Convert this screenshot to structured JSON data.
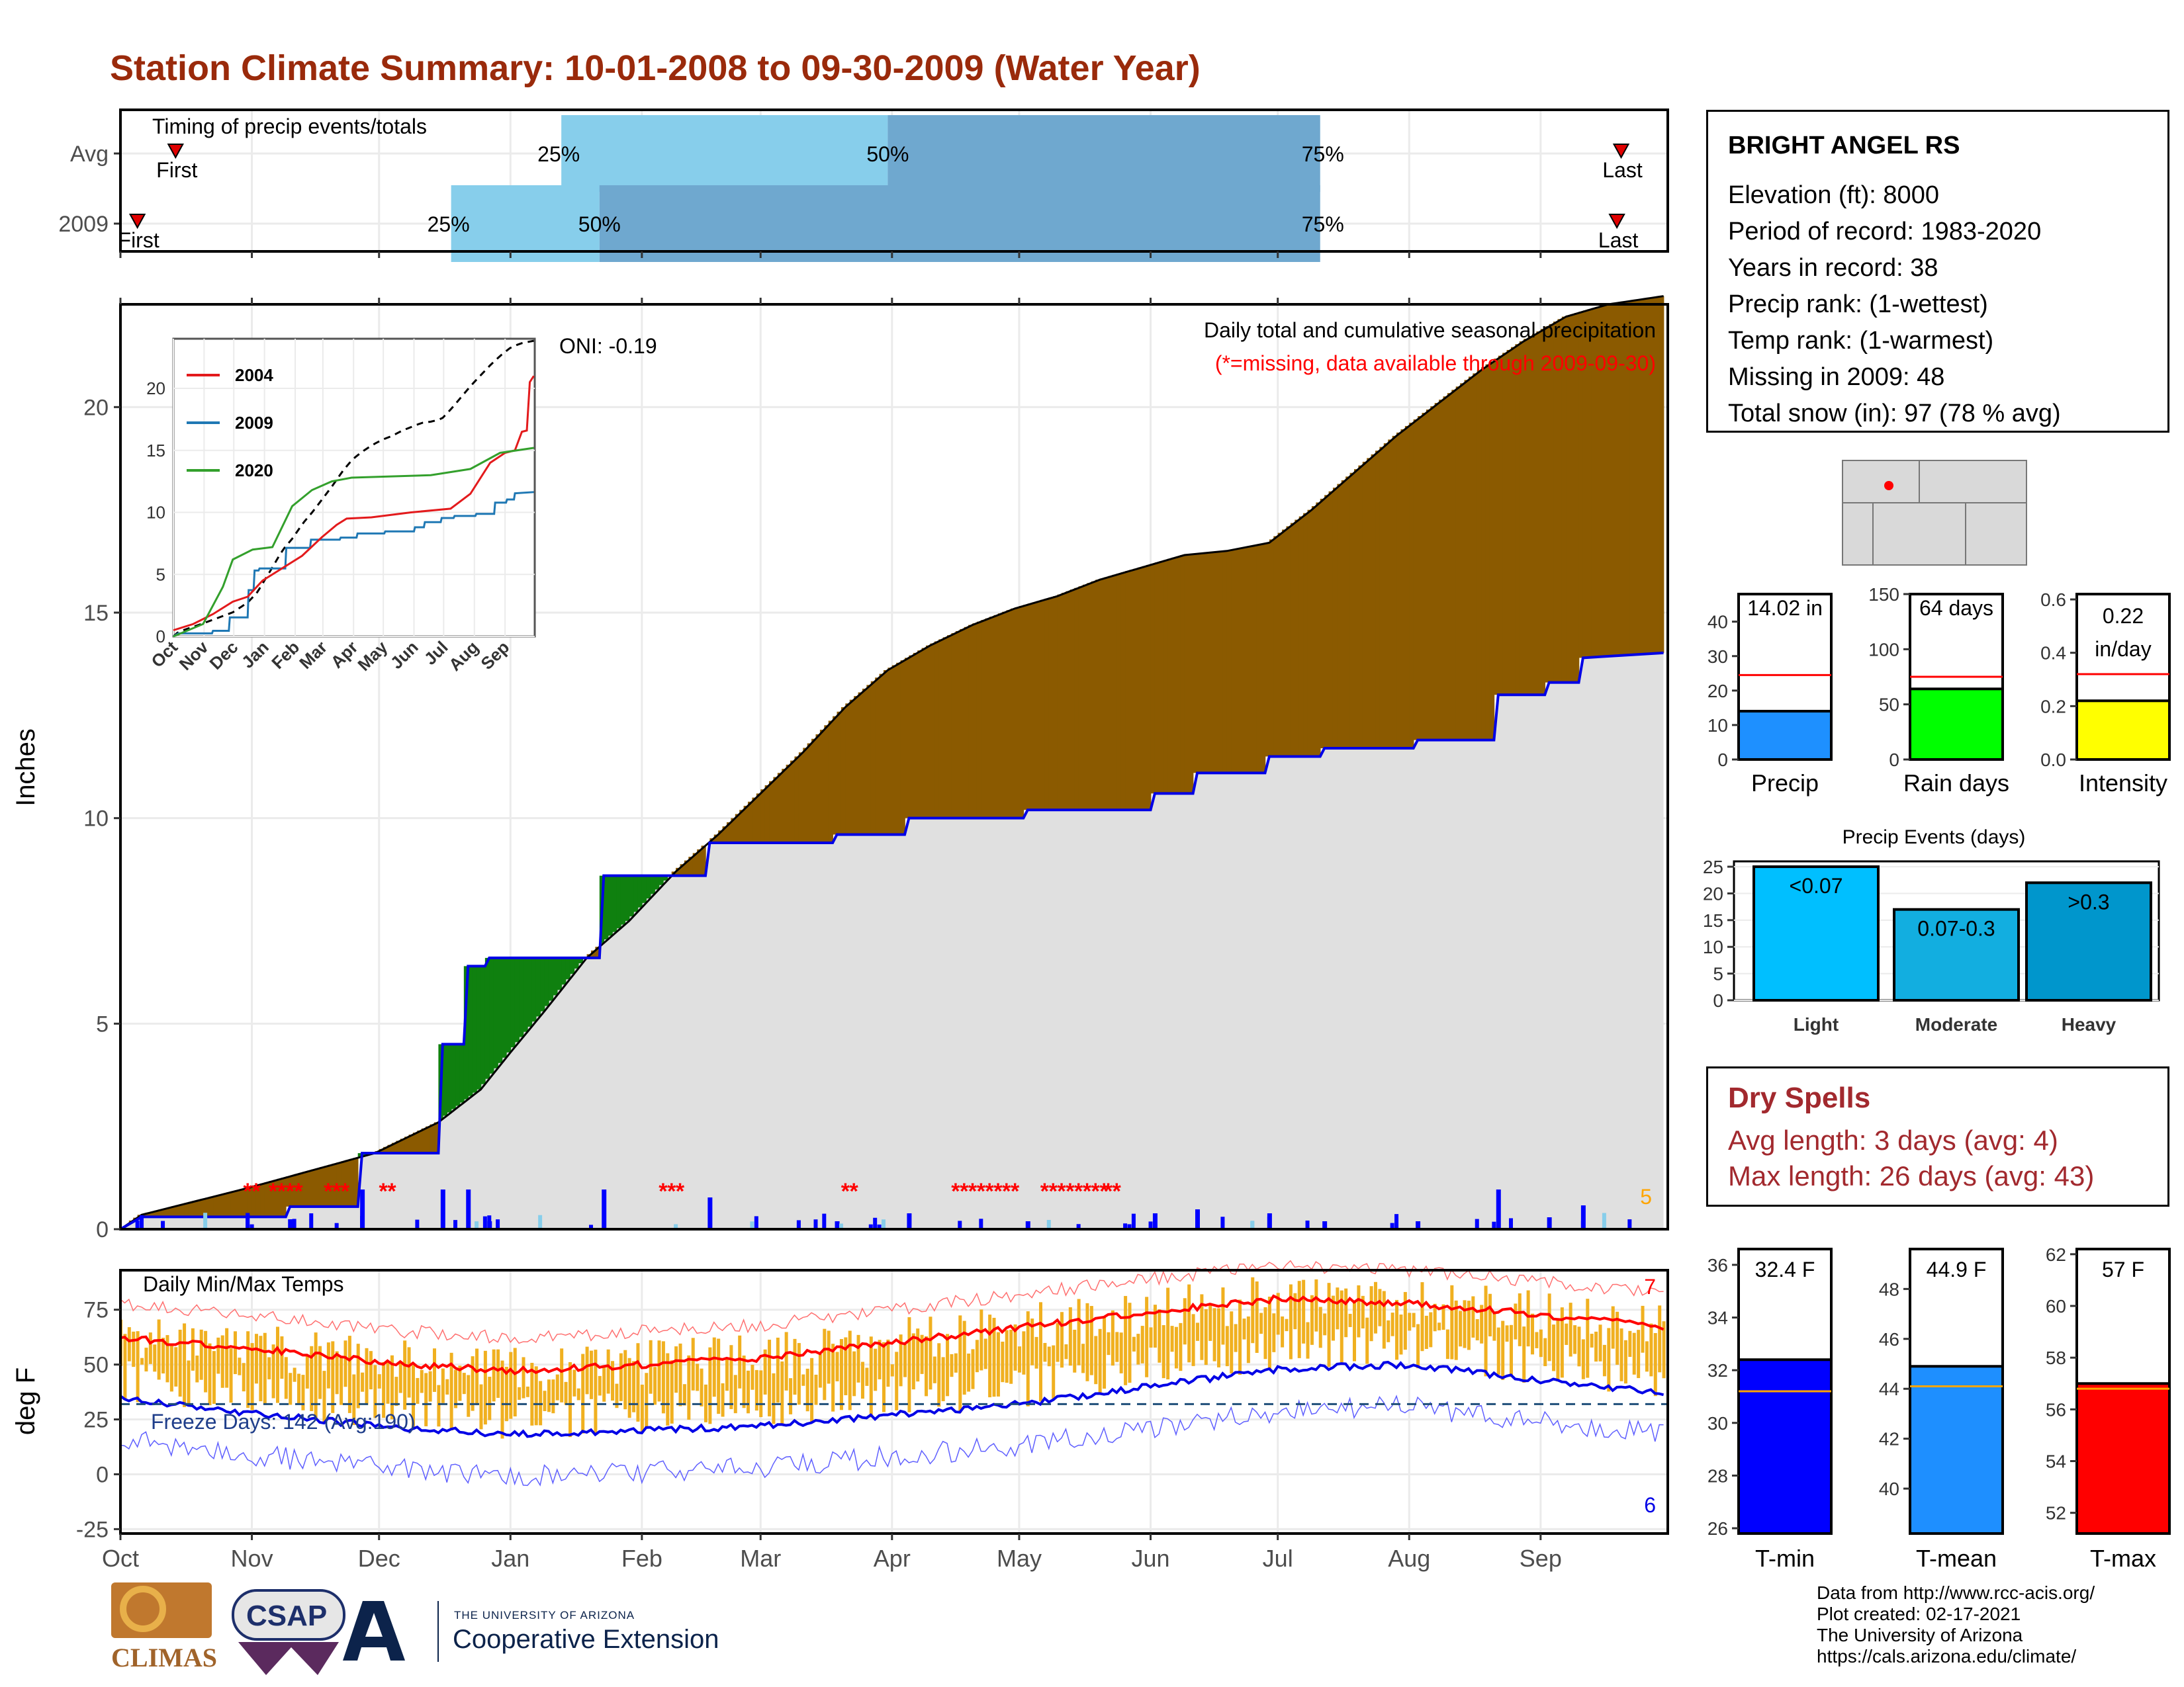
{
  "page_title": "Station Climate Summary: 10-01-2008 to 09-30-2009 (Water Year)",
  "colors": {
    "title": "#9a2a0b",
    "cumulative_fill": "#8b5a00",
    "avg_fill": "#e0e0e0",
    "wet_fill": "#0f800f",
    "this_year_line": "#0000e6",
    "missing": "#ff0000",
    "tmax_line": "#ff0000",
    "tmin_line": "#0000e6",
    "daily_bars": "#f0b020",
    "timing_light": "#87ceeb",
    "timing_dark": "#6fa8cf"
  },
  "timing_panel": {
    "label": "Timing of precip events/totals",
    "rows": [
      {
        "name": "Avg",
        "first": "First",
        "last": "Last",
        "q25": "25%",
        "q50": "50%",
        "q75": "75%",
        "first_day": 13,
        "q25_day": 104,
        "q50_day": 181,
        "q75_day": 283,
        "last_day": 354
      },
      {
        "name": "2009",
        "first": "First",
        "last": "Last",
        "q25": "25%",
        "q50": "50%",
        "q75": "75%",
        "first_day": 4,
        "q25_day": 78,
        "q50_day": 113,
        "q75_day": 283,
        "last_day": 353
      }
    ]
  },
  "precip_panel": {
    "caption": "Daily total and cumulative seasonal precipitation",
    "missing_note": "(*=missing, data available through 2009-09-30)",
    "oni": "ONI: -0.19",
    "ylabel": "Inches",
    "yticks": [
      "0",
      "5",
      "10",
      "15",
      "20"
    ],
    "right_count": "5"
  },
  "inset": {
    "yticks": [
      "0",
      "5",
      "10",
      "15",
      "20"
    ],
    "months": [
      "Oct",
      "Nov",
      "Dec",
      "Jan",
      "Feb",
      "Mar",
      "Apr",
      "May",
      "Jun",
      "Jul",
      "Aug",
      "Sep"
    ],
    "legend": [
      "2004",
      "2009",
      "2020"
    ]
  },
  "temp_panel": {
    "label": "Daily Min/Max Temps",
    "freeze": "Freeze Days: 142 (Avg:190)",
    "ylabel": "deg F",
    "yticks": [
      "-25",
      "0",
      "25",
      "50",
      "75"
    ],
    "count_max": "7",
    "count_min": "6"
  },
  "months": [
    "Oct",
    "Nov",
    "Dec",
    "Jan",
    "Feb",
    "Mar",
    "Apr",
    "May",
    "Jun",
    "Jul",
    "Aug",
    "Sep"
  ],
  "station": {
    "name": "BRIGHT ANGEL RS",
    "lines": [
      "Elevation (ft): 8000",
      "Period of record: 1983-2020",
      "Years in record: 38",
      "Precip rank:  (1-wettest)",
      "Temp rank:  (1-warmest)",
      "Missing in 2009: 48",
      "Total snow (in): 97 (78 % avg)"
    ]
  },
  "mini_bars": [
    {
      "label": "Precip",
      "value_text": "14.02 in",
      "value": 14.02,
      "avg": 24.5,
      "ymax": 48,
      "ticks": [
        "0",
        "10",
        "20",
        "30",
        "40"
      ],
      "color": "#1e90ff"
    },
    {
      "label": "Rain days",
      "value_text": "64 days",
      "value": 64,
      "avg": 75,
      "ymax": 150,
      "ticks": [
        "0",
        "50",
        "100",
        "150"
      ],
      "color": "#00ff00"
    },
    {
      "label": "Intensity",
      "value_text": "0.22 in/day",
      "value_line1": "0.22",
      "value_line2": "in/day",
      "value": 0.22,
      "avg": 0.32,
      "ymax": 0.62,
      "ticks": [
        "0.0",
        "0.2",
        "0.4",
        "0.6"
      ],
      "color": "#ffff00"
    }
  ],
  "precip_events": {
    "title": "Precip Events (days)",
    "ticks": [
      "0",
      "5",
      "10",
      "15",
      "20",
      "25"
    ],
    "bars": [
      {
        "label": "Light",
        "range": "<0.07",
        "value": 25,
        "color": "#00bfff"
      },
      {
        "label": "Moderate",
        "range": "0.07-0.3",
        "value": 17,
        "color": "#12aee0"
      },
      {
        "label": "Heavy",
        "range": ">0.3",
        "value": 22,
        "color": "#0096cc"
      }
    ]
  },
  "dry_spells": {
    "title": "Dry Spells",
    "avg": "Avg length: 3 days (avg: 4)",
    "max": "Max length: 26 days (avg: 43)"
  },
  "temp_bars": [
    {
      "label": "T-min",
      "value_text": "32.4 F",
      "value": 32.4,
      "avg": 31.2,
      "ymin": 25.8,
      "ymax": 36.6,
      "ticks": [
        "26",
        "28",
        "30",
        "32",
        "34",
        "36"
      ],
      "color": "#0000ff"
    },
    {
      "label": "T-mean",
      "value_text": "44.9 F",
      "value": 44.9,
      "avg": 44.1,
      "ymin": 38.2,
      "ymax": 49.6,
      "ticks": [
        "40",
        "42",
        "44",
        "46",
        "48"
      ],
      "color": "#1e8fff"
    },
    {
      "label": "T-max",
      "value_text": "57 F",
      "value": 57.0,
      "avg": 56.8,
      "ymin": 51.2,
      "ymax": 62.2,
      "ticks": [
        "52",
        "54",
        "56",
        "58",
        "60",
        "62"
      ],
      "color": "#ff0000"
    }
  ],
  "credits": [
    "Data from http://www.rcc-acis.org/",
    "Plot created: 02-17-2021",
    "The University of Arizona",
    "https://cals.arizona.edu/climate/"
  ],
  "logos": {
    "climas": "CLIMAS",
    "csap": "CSAP",
    "ua_small": "THE UNIVERSITY OF ARIZONA",
    "ua_big": "Cooperative Extension"
  },
  "chart_data": {
    "type": "area",
    "xlabel": "",
    "ylabel": "Inches",
    "xlim_days": [
      0,
      365
    ],
    "x_month_ticks": [
      "Oct",
      "Nov",
      "Dec",
      "Jan",
      "Feb",
      "Mar",
      "Apr",
      "May",
      "Jun",
      "Jul",
      "Aug",
      "Sep"
    ],
    "ylim": [
      0,
      22.5
    ],
    "grid": true,
    "series": [
      {
        "name": "",
        "style": "cumulative average",
        "x": [
          0,
          5,
          30,
          60,
          75,
          85,
          92,
          100,
          110,
          120,
          131,
          141,
          151,
          161,
          171,
          181,
          191,
          201,
          211,
          221,
          231,
          241,
          251,
          261,
          271,
          281,
          291,
          301,
          311,
          321,
          331,
          341,
          351,
          364
        ],
        "y": [
          0,
          0.35,
          1.0,
          1.85,
          2.6,
          3.4,
          4.3,
          5.3,
          6.6,
          7.5,
          8.7,
          9.6,
          10.6,
          11.6,
          12.7,
          13.6,
          14.2,
          14.7,
          15.1,
          15.4,
          15.8,
          16.1,
          16.4,
          16.5,
          16.7,
          17.5,
          18.4,
          19.3,
          20.1,
          20.9,
          21.6,
          22.2,
          22.5,
          22.7
        ]
      },
      {
        "name": "",
        "style": "cumulative 2009",
        "x": [
          0,
          5,
          39,
          40,
          56,
          57,
          75,
          76,
          81,
          82,
          86,
          87,
          113,
          114,
          138,
          139,
          168,
          169,
          185,
          186,
          213,
          214,
          243,
          244,
          253,
          254,
          270,
          271,
          283,
          284,
          305,
          306,
          324,
          325,
          336,
          337,
          344,
          345,
          364
        ],
        "y": [
          0,
          0.3,
          0.3,
          0.55,
          0.55,
          1.85,
          1.85,
          4.5,
          4.5,
          6.4,
          6.4,
          6.6,
          6.6,
          8.6,
          8.6,
          9.4,
          9.4,
          9.6,
          9.6,
          10.0,
          10.0,
          10.2,
          10.2,
          10.6,
          10.6,
          11.1,
          11.1,
          11.5,
          11.5,
          11.7,
          11.7,
          11.9,
          11.9,
          13.0,
          13.0,
          13.3,
          13.3,
          13.9,
          14.02
        ]
      }
    ],
    "missing_day_ranges": [
      [
        30,
        33
      ],
      [
        36,
        42
      ],
      [
        49,
        54
      ],
      [
        62,
        65
      ],
      [
        128,
        132
      ],
      [
        171,
        173
      ],
      [
        197,
        212
      ],
      [
        218,
        233
      ],
      [
        233,
        236
      ]
    ],
    "temps": {
      "type": "line",
      "ylim": [
        -27,
        93
      ],
      "series": [
        {
          "name": "",
          "style": "avg max",
          "x": [
            0,
            30,
            61,
            92,
            123,
            151,
            182,
            212,
            243,
            273,
            304,
            334,
            364
          ],
          "y": [
            62,
            58,
            51,
            47,
            50,
            53,
            60,
            67,
            74,
            80,
            78,
            73,
            67
          ]
        },
        {
          "name": "",
          "style": "avg min",
          "x": [
            0,
            30,
            61,
            92,
            123,
            151,
            182,
            212,
            243,
            273,
            304,
            334,
            364
          ],
          "y": [
            35,
            28,
            22,
            18,
            20,
            22,
            27,
            32,
            40,
            48,
            50,
            43,
            37
          ]
        }
      ]
    }
  }
}
